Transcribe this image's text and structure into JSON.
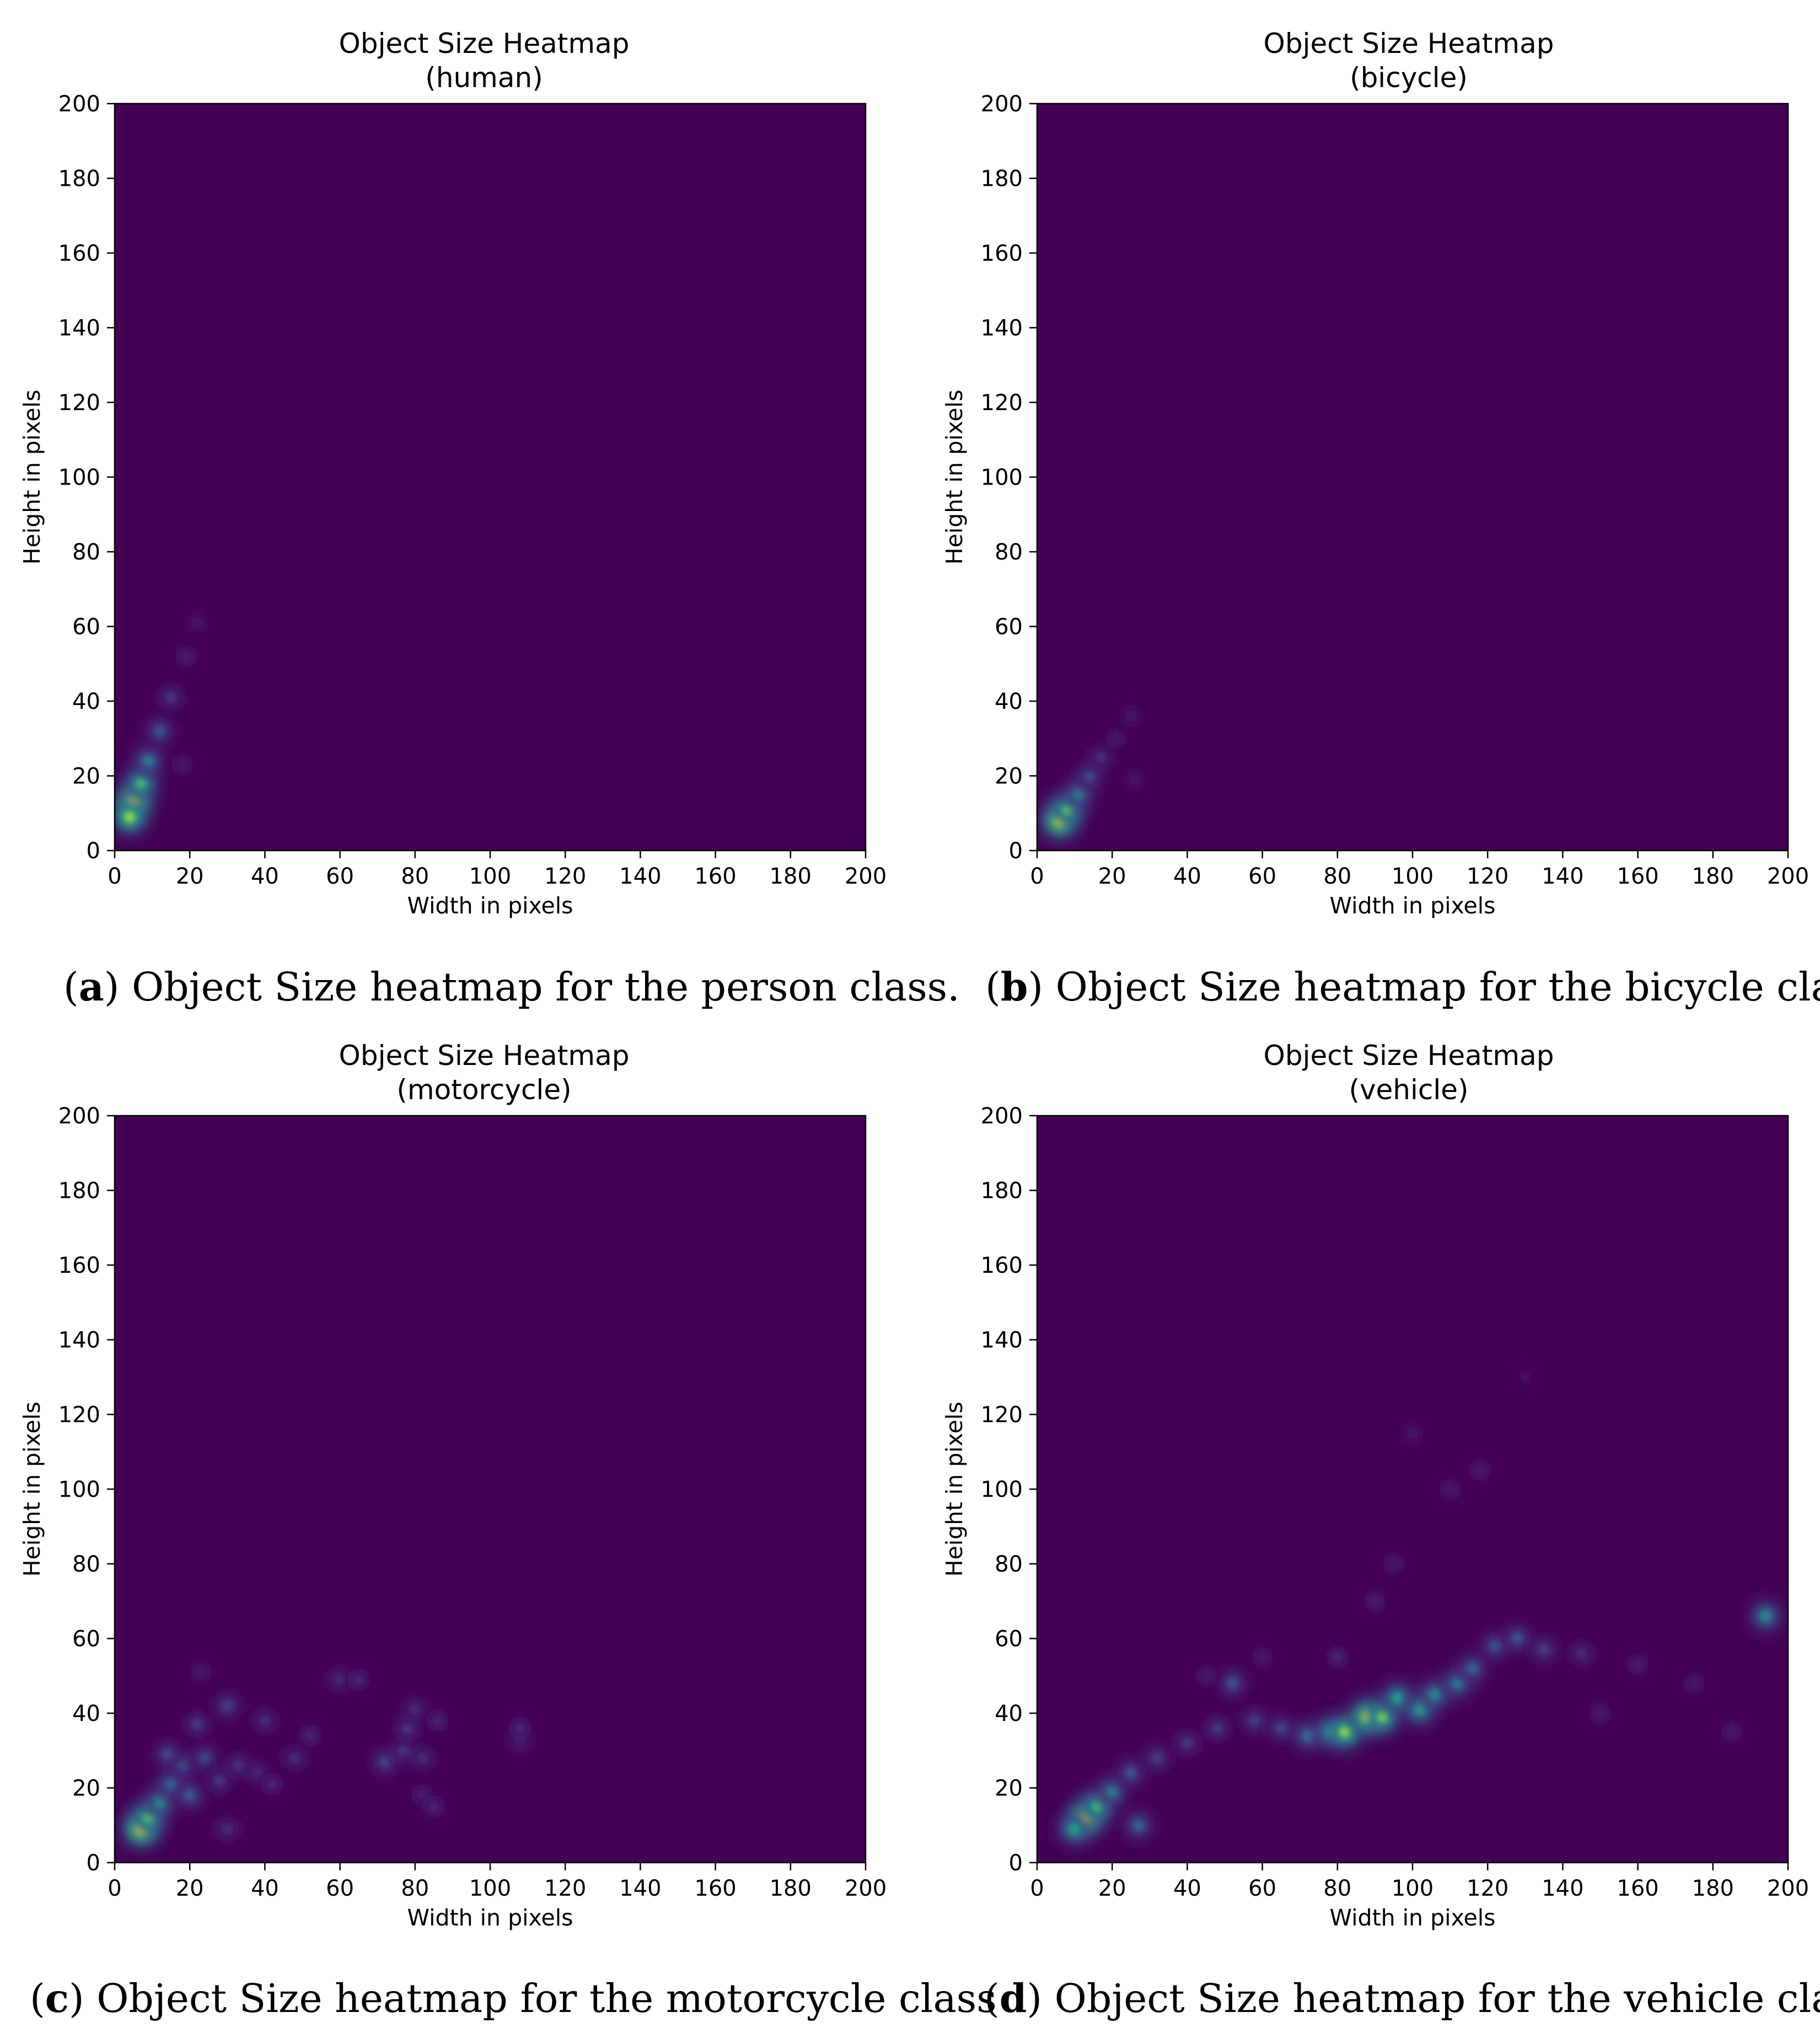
{
  "chart_data": [
    {
      "type": "heatmap",
      "title": "Object Size Heatmap",
      "subtitle": "(human)",
      "xlabel": "Width in pixels",
      "ylabel": "Height in pixels",
      "xlim": [
        0,
        200
      ],
      "ylim": [
        0,
        200
      ],
      "xticks": [
        "0",
        "20",
        "40",
        "60",
        "80",
        "100",
        "120",
        "140",
        "160",
        "180",
        "200"
      ],
      "yticks": [
        "0",
        "20",
        "40",
        "60",
        "80",
        "100",
        "120",
        "140",
        "160",
        "180",
        "200"
      ],
      "grid": false,
      "colormap": "viridis",
      "caption_letter": "a",
      "caption_text": " Object Size heatmap for the person class.",
      "hotspots": [
        {
          "x": 5,
          "y": 13,
          "intensity": 1.0
        },
        {
          "x": 4,
          "y": 9,
          "intensity": 0.85
        },
        {
          "x": 7,
          "y": 18,
          "intensity": 0.7
        },
        {
          "x": 9,
          "y": 24,
          "intensity": 0.45
        },
        {
          "x": 12,
          "y": 32,
          "intensity": 0.3
        },
        {
          "x": 15,
          "y": 41,
          "intensity": 0.18
        },
        {
          "x": 19,
          "y": 52,
          "intensity": 0.1
        },
        {
          "x": 22,
          "y": 61,
          "intensity": 0.05
        },
        {
          "x": 18,
          "y": 23,
          "intensity": 0.08
        }
      ]
    },
    {
      "type": "heatmap",
      "title": "Object Size Heatmap",
      "subtitle": "(bicycle)",
      "xlabel": "Width in pixels",
      "ylabel": "Height in pixels",
      "xlim": [
        0,
        200
      ],
      "ylim": [
        0,
        200
      ],
      "xticks": [
        "0",
        "20",
        "40",
        "60",
        "80",
        "100",
        "120",
        "140",
        "160",
        "180",
        "200"
      ],
      "yticks": [
        "0",
        "20",
        "40",
        "60",
        "80",
        "100",
        "120",
        "140",
        "160",
        "180",
        "200"
      ],
      "grid": false,
      "colormap": "viridis",
      "caption_letter": "b",
      "caption_text": " Object Size heatmap for the bicycle class.",
      "hotspots": [
        {
          "x": 6,
          "y": 8,
          "intensity": 1.0
        },
        {
          "x": 8,
          "y": 11,
          "intensity": 0.75
        },
        {
          "x": 11,
          "y": 15,
          "intensity": 0.45
        },
        {
          "x": 14,
          "y": 20,
          "intensity": 0.28
        },
        {
          "x": 17,
          "y": 25,
          "intensity": 0.16
        },
        {
          "x": 21,
          "y": 30,
          "intensity": 0.08
        },
        {
          "x": 25,
          "y": 36,
          "intensity": 0.05
        },
        {
          "x": 26,
          "y": 19,
          "intensity": 0.05
        }
      ]
    },
    {
      "type": "heatmap",
      "title": "Object Size Heatmap",
      "subtitle": "(motorcycle)",
      "xlabel": "Width in pixels",
      "ylabel": "Height in pixels",
      "xlim": [
        0,
        200
      ],
      "ylim": [
        0,
        200
      ],
      "xticks": [
        "0",
        "20",
        "40",
        "60",
        "80",
        "100",
        "120",
        "140",
        "160",
        "180",
        "200"
      ],
      "yticks": [
        "0",
        "20",
        "40",
        "60",
        "80",
        "100",
        "120",
        "140",
        "160",
        "180",
        "200"
      ],
      "grid": false,
      "colormap": "viridis",
      "caption_letter": "c",
      "caption_text": " Object Size heatmap for the motorcycle class",
      "hotspots": [
        {
          "x": 7,
          "y": 9,
          "intensity": 1.0
        },
        {
          "x": 9,
          "y": 12,
          "intensity": 0.75
        },
        {
          "x": 12,
          "y": 16,
          "intensity": 0.5
        },
        {
          "x": 15,
          "y": 21,
          "intensity": 0.4
        },
        {
          "x": 18,
          "y": 26,
          "intensity": 0.3
        },
        {
          "x": 14,
          "y": 29,
          "intensity": 0.25
        },
        {
          "x": 20,
          "y": 18,
          "intensity": 0.32
        },
        {
          "x": 24,
          "y": 28,
          "intensity": 0.25
        },
        {
          "x": 22,
          "y": 37,
          "intensity": 0.2
        },
        {
          "x": 30,
          "y": 42,
          "intensity": 0.22
        },
        {
          "x": 28,
          "y": 22,
          "intensity": 0.2
        },
        {
          "x": 33,
          "y": 26,
          "intensity": 0.18
        },
        {
          "x": 30,
          "y": 9,
          "intensity": 0.15
        },
        {
          "x": 40,
          "y": 38,
          "intensity": 0.15
        },
        {
          "x": 38,
          "y": 24,
          "intensity": 0.15
        },
        {
          "x": 48,
          "y": 28,
          "intensity": 0.15
        },
        {
          "x": 42,
          "y": 21,
          "intensity": 0.12
        },
        {
          "x": 52,
          "y": 34,
          "intensity": 0.12
        },
        {
          "x": 60,
          "y": 49,
          "intensity": 0.15
        },
        {
          "x": 65,
          "y": 49,
          "intensity": 0.12
        },
        {
          "x": 72,
          "y": 27,
          "intensity": 0.25
        },
        {
          "x": 77,
          "y": 30,
          "intensity": 0.2
        },
        {
          "x": 78,
          "y": 36,
          "intensity": 0.2
        },
        {
          "x": 80,
          "y": 41,
          "intensity": 0.15
        },
        {
          "x": 86,
          "y": 38,
          "intensity": 0.12
        },
        {
          "x": 82,
          "y": 28,
          "intensity": 0.15
        },
        {
          "x": 82,
          "y": 18,
          "intensity": 0.12
        },
        {
          "x": 85,
          "y": 15,
          "intensity": 0.12
        },
        {
          "x": 108,
          "y": 33,
          "intensity": 0.15
        },
        {
          "x": 108,
          "y": 36,
          "intensity": 0.12
        },
        {
          "x": 23,
          "y": 51,
          "intensity": 0.08
        }
      ]
    },
    {
      "type": "heatmap",
      "title": "Object Size Heatmap",
      "subtitle": "(vehicle)",
      "xlabel": "Width in pixels",
      "ylabel": "Height in pixels",
      "xlim": [
        0,
        200
      ],
      "ylim": [
        0,
        200
      ],
      "xticks": [
        "0",
        "20",
        "40",
        "60",
        "80",
        "100",
        "120",
        "140",
        "160",
        "180",
        "200"
      ],
      "yticks": [
        "0",
        "20",
        "40",
        "60",
        "80",
        "100",
        "120",
        "140",
        "160",
        "180",
        "200"
      ],
      "grid": false,
      "colormap": "viridis",
      "caption_letter": "d",
      "caption_text": " Object Size heatmap for the vehicle class.",
      "hotspots": [
        {
          "x": 13,
          "y": 12,
          "intensity": 1.0
        },
        {
          "x": 10,
          "y": 9,
          "intensity": 0.6
        },
        {
          "x": 16,
          "y": 15,
          "intensity": 0.7
        },
        {
          "x": 20,
          "y": 19,
          "intensity": 0.45
        },
        {
          "x": 25,
          "y": 24,
          "intensity": 0.3
        },
        {
          "x": 27,
          "y": 10,
          "intensity": 0.35
        },
        {
          "x": 32,
          "y": 28,
          "intensity": 0.22
        },
        {
          "x": 40,
          "y": 32,
          "intensity": 0.2
        },
        {
          "x": 48,
          "y": 36,
          "intensity": 0.2
        },
        {
          "x": 52,
          "y": 48,
          "intensity": 0.3
        },
        {
          "x": 58,
          "y": 38,
          "intensity": 0.22
        },
        {
          "x": 65,
          "y": 36,
          "intensity": 0.25
        },
        {
          "x": 72,
          "y": 34,
          "intensity": 0.4
        },
        {
          "x": 78,
          "y": 35,
          "intensity": 0.55
        },
        {
          "x": 82,
          "y": 35,
          "intensity": 0.85
        },
        {
          "x": 88,
          "y": 39,
          "intensity": 0.95
        },
        {
          "x": 92,
          "y": 39,
          "intensity": 0.8
        },
        {
          "x": 96,
          "y": 44,
          "intensity": 0.6
        },
        {
          "x": 102,
          "y": 41,
          "intensity": 0.6
        },
        {
          "x": 106,
          "y": 45,
          "intensity": 0.5
        },
        {
          "x": 112,
          "y": 48,
          "intensity": 0.45
        },
        {
          "x": 116,
          "y": 52,
          "intensity": 0.35
        },
        {
          "x": 122,
          "y": 58,
          "intensity": 0.3
        },
        {
          "x": 128,
          "y": 60,
          "intensity": 0.3
        },
        {
          "x": 135,
          "y": 57,
          "intensity": 0.22
        },
        {
          "x": 145,
          "y": 56,
          "intensity": 0.15
        },
        {
          "x": 160,
          "y": 53,
          "intensity": 0.1
        },
        {
          "x": 175,
          "y": 48,
          "intensity": 0.08
        },
        {
          "x": 185,
          "y": 35,
          "intensity": 0.08
        },
        {
          "x": 194,
          "y": 66,
          "intensity": 0.5
        },
        {
          "x": 90,
          "y": 70,
          "intensity": 0.1
        },
        {
          "x": 95,
          "y": 80,
          "intensity": 0.08
        },
        {
          "x": 110,
          "y": 100,
          "intensity": 0.08
        },
        {
          "x": 118,
          "y": 105,
          "intensity": 0.08
        },
        {
          "x": 100,
          "y": 115,
          "intensity": 0.05
        },
        {
          "x": 45,
          "y": 50,
          "intensity": 0.08
        },
        {
          "x": 130,
          "y": 130,
          "intensity": 0.04
        },
        {
          "x": 80,
          "y": 55,
          "intensity": 0.12
        },
        {
          "x": 60,
          "y": 55,
          "intensity": 0.08
        },
        {
          "x": 150,
          "y": 40,
          "intensity": 0.08
        }
      ]
    }
  ]
}
